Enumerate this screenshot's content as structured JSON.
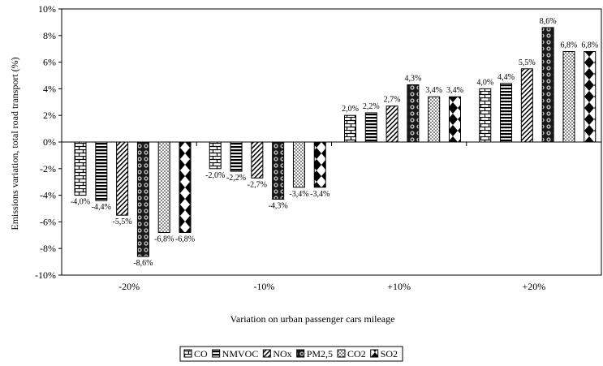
{
  "chart_data": {
    "type": "bar",
    "title": "",
    "xlabel": "Variation on urban passenger cars mileage",
    "ylabel": "Emissions variation, total road transport (%)",
    "ylim": [
      -10,
      10
    ],
    "yticks": [
      10,
      8,
      6,
      4,
      2,
      0,
      -2,
      -4,
      -6,
      -8,
      -10
    ],
    "ytick_labels": [
      "10%",
      "8%",
      "6%",
      "4%",
      "2%",
      "0%",
      "-2%",
      "-4%",
      "-6%",
      "-8%",
      "-10%"
    ],
    "categories": [
      "-20%",
      "-10%",
      "+10%",
      "+20%"
    ],
    "legend_position": "bottom",
    "grid": false,
    "series": [
      {
        "name": "CO",
        "pattern": "bricks",
        "values": [
          -4.0,
          -2.0,
          2.0,
          4.0
        ],
        "labels": [
          "-4,0%",
          "-2,0%",
          "2,0%",
          "4,0%"
        ]
      },
      {
        "name": "NMVOC",
        "pattern": "hstripes",
        "values": [
          -4.4,
          -2.2,
          2.2,
          4.4
        ],
        "labels": [
          "-4,4%",
          "-2,2%",
          "2,2%",
          "4,4%"
        ]
      },
      {
        "name": "NOx",
        "pattern": "diagonal",
        "values": [
          -5.5,
          -2.7,
          2.7,
          5.5
        ],
        "labels": [
          "-5,5%",
          "-2,7%",
          "2,7%",
          "5,5%"
        ]
      },
      {
        "name": "PM2,5",
        "pattern": "darkcircles",
        "values": [
          -8.6,
          -4.3,
          4.3,
          8.6
        ],
        "labels": [
          "-8,6%",
          "-4,3%",
          "4,3%",
          "8,6%"
        ]
      },
      {
        "name": "CO2",
        "pattern": "dots",
        "values": [
          -6.8,
          -3.4,
          3.4,
          6.8
        ],
        "labels": [
          "-6,8%",
          "-3,4%",
          "3,4%",
          "6,8%"
        ]
      },
      {
        "name": "SO2",
        "pattern": "diamonds",
        "values": [
          -6.8,
          -3.4,
          3.4,
          6.8
        ],
        "labels": [
          "-6,8%",
          "-3,4%",
          "3,4%",
          "6,8%"
        ]
      }
    ]
  }
}
